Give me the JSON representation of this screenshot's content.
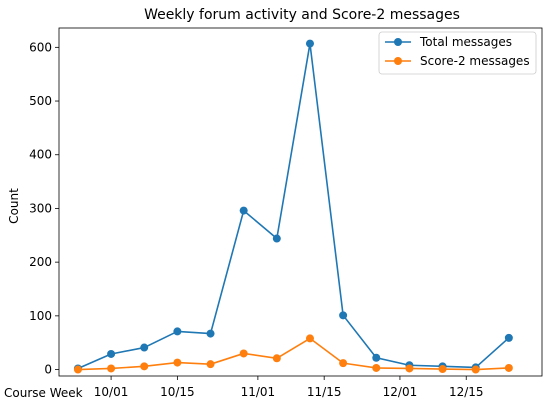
{
  "chart_data": {
    "type": "line",
    "title": "Weekly forum activity and Score-2 messages",
    "xlabel": "Course Week",
    "ylabel": "Count",
    "ylim": [
      -12,
      636
    ],
    "yticks": [
      0,
      100,
      200,
      300,
      400,
      500,
      600
    ],
    "xlim": [
      "2008-09-20",
      "2008-12-31"
    ],
    "xtick_dates": [
      "2008-10-01",
      "2008-10-15",
      "2008-11-01",
      "2008-11-15",
      "2008-12-01",
      "2008-12-15"
    ],
    "xtick_labels": [
      "10/01",
      "10/15",
      "11/01",
      "11/15",
      "12/01",
      "12/15"
    ],
    "grid": false,
    "legend_position": "top-right",
    "x": [
      "2008-09-24",
      "2008-10-01",
      "2008-10-08",
      "2008-10-15",
      "2008-10-22",
      "2008-10-29",
      "2008-11-05",
      "2008-11-12",
      "2008-11-19",
      "2008-11-26",
      "2008-12-03",
      "2008-12-10",
      "2008-12-17",
      "2008-12-24"
    ],
    "series": [
      {
        "name": "Total messages",
        "color": "#1f77b4",
        "values": [
          2,
          29,
          41,
          71,
          67,
          296,
          244,
          607,
          101,
          22,
          8,
          6,
          4,
          59
        ]
      },
      {
        "name": "Score-2 messages",
        "color": "#ff7f0e",
        "values": [
          0,
          2,
          6,
          13,
          10,
          30,
          21,
          58,
          12,
          3,
          2,
          1,
          0,
          3
        ]
      }
    ]
  }
}
